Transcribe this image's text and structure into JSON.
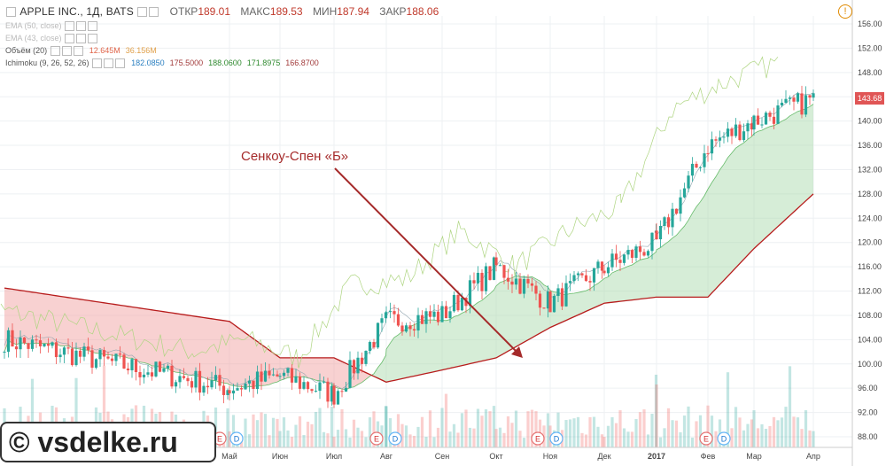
{
  "header": {
    "symbol": "APPLE INC., 1Д, BATS",
    "open_label": "ОТКР",
    "open": "189.01",
    "high_label": "МАКС",
    "high": "189.53",
    "low_label": "МИН",
    "low": "187.94",
    "close_label": "ЗАКР",
    "close": "188.06"
  },
  "indicators": {
    "ema1": "EMA (50, close)",
    "ema2": "EMA (43, close)",
    "volume_label": "Объём (20)",
    "volume_v1": "12.645M",
    "volume_v2": "36.156M",
    "ichimoku_label": "Ichimoku (9, 26, 52, 26)",
    "ichimoku_values": [
      "182.0850",
      "175.5000",
      "188.0600",
      "171.8975",
      "166.8700"
    ]
  },
  "annotation": {
    "text": "Сенкоу-Спен «Б»"
  },
  "watermark": "© vsdelke.ru",
  "last_price": "143.68",
  "colors": {
    "bull": "#26a69a",
    "bear": "#ef5350",
    "cloud_bull": "#a5d6a7",
    "cloud_bear": "#ef9a9a",
    "span_b": "#b71c1c",
    "arrow": "#a52a2a"
  },
  "chart_data": {
    "type": "candlestick",
    "y_axis": {
      "min": 88,
      "max": 156,
      "ticks": [
        "156.00",
        "152.00",
        "148.00",
        "144.00",
        "140.00",
        "136.00",
        "132.00",
        "128.00",
        "124.00",
        "120.00",
        "116.00",
        "112.00",
        "108.00",
        "104.00",
        "100.00",
        "96.00",
        "92.00",
        "88.00"
      ]
    },
    "x_axis": {
      "ticks": [
        "Май",
        "Июн",
        "Июл",
        "Авг",
        "Сен",
        "Окт",
        "Ноя",
        "Дек",
        "2017",
        "Фев",
        "Мар",
        "Апр"
      ]
    },
    "event_markers": [
      {
        "kind": "E"
      },
      {
        "kind": "D"
      },
      {
        "kind": "E"
      },
      {
        "kind": "D"
      },
      {
        "kind": "E"
      },
      {
        "kind": "D"
      },
      {
        "kind": "E"
      },
      {
        "kind": "D"
      }
    ],
    "span_b": [
      {
        "x": "Апр",
        "y": 112.5
      },
      {
        "x": "Май",
        "y": 107
      },
      {
        "x": "Июн",
        "y": 101
      },
      {
        "x": "Июл",
        "y": 101
      },
      {
        "x": "Авг",
        "y": 97
      },
      {
        "x": "Сен",
        "y": 99
      },
      {
        "x": "Окт",
        "y": 101
      },
      {
        "x": "Ноя",
        "y": 106
      },
      {
        "x": "Дек",
        "y": 110
      },
      {
        "x": "2017",
        "y": 111
      },
      {
        "x": "Фев",
        "y": 111
      },
      {
        "x": "Мар",
        "y": 119
      },
      {
        "x": "Апр",
        "y": 128
      }
    ],
    "price_path": [
      {
        "x": "Апр",
        "y": 104
      },
      {
        "x": "Май",
        "y": 96
      },
      {
        "x": "Июн",
        "y": 98
      },
      {
        "x": "Июл",
        "y": 95
      },
      {
        "x": "Авг",
        "y": 107
      },
      {
        "x": "Сен",
        "y": 108
      },
      {
        "x": "Окт",
        "y": 116
      },
      {
        "x": "Ноя",
        "y": 110
      },
      {
        "x": "Дек",
        "y": 116
      },
      {
        "x": "2017",
        "y": 120
      },
      {
        "x": "Фев",
        "y": 136
      },
      {
        "x": "Мар",
        "y": 140
      },
      {
        "x": "Апр",
        "y": 143.68
      }
    ]
  }
}
